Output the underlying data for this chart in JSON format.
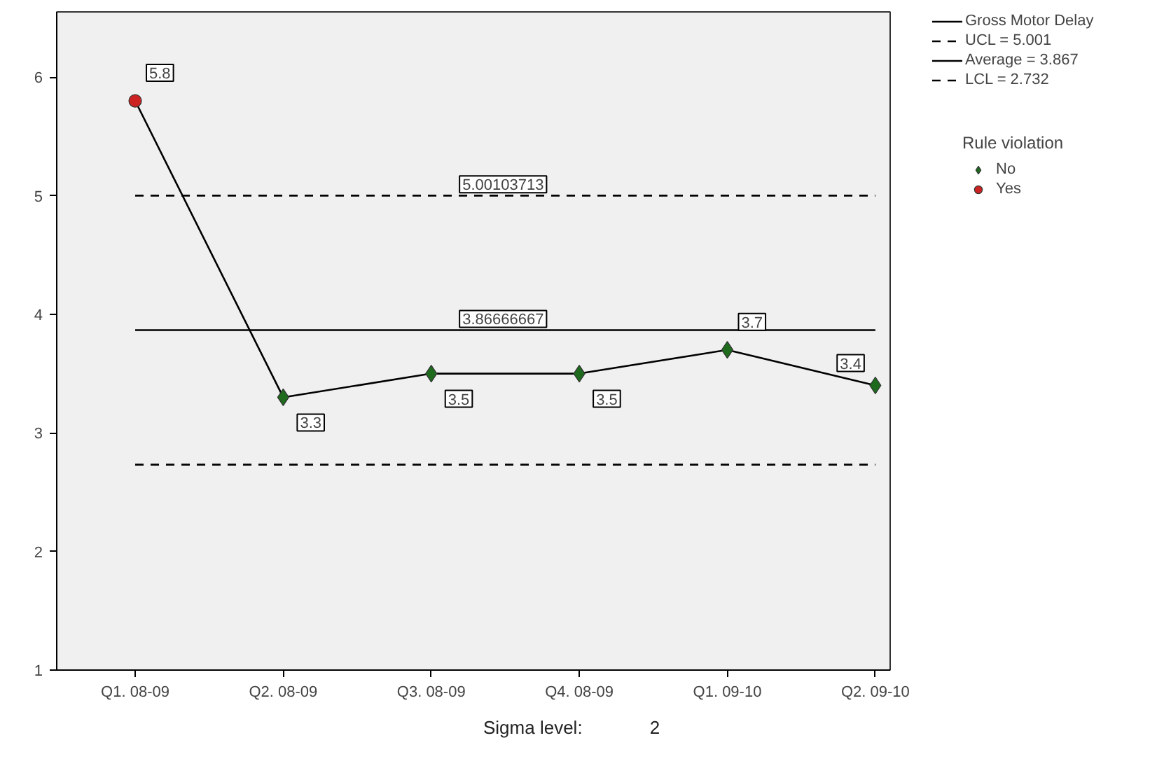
{
  "chart_data": {
    "type": "line",
    "categories": [
      "Q1. 08-09",
      "Q2. 08-09",
      "Q3. 08-09",
      "Q4. 08-09",
      "Q1. 09-10",
      "Q2. 09-10"
    ],
    "series": [
      {
        "name": "Gross Motor Delay",
        "color": "#000000",
        "values": [
          5.8,
          3.3,
          3.5,
          3.5,
          3.7,
          3.4
        ],
        "value_labels": [
          "5.8",
          "3.3",
          "3.5",
          "3.5",
          "3.7",
          "3.4"
        ],
        "marker": "none",
        "line_style": "solid"
      },
      {
        "name": "UCL = 5.001",
        "color": "#000000",
        "values": [
          5.00103713,
          5.00103713,
          5.00103713,
          5.00103713,
          5.00103713,
          5.00103713
        ],
        "marker": "none",
        "line_style": "dashed"
      },
      {
        "name": "Average = 3.867",
        "color": "#000000",
        "values": [
          3.86666667,
          3.86666667,
          3.86666667,
          3.86666667,
          3.86666667,
          3.86666667
        ],
        "marker": "none",
        "line_style": "solid"
      },
      {
        "name": "LCL = 2.732",
        "color": "#000000",
        "values": [
          2.732,
          2.732,
          2.732,
          2.732,
          2.732,
          2.732
        ],
        "marker": "none",
        "line_style": "dashed"
      },
      {
        "name": "No",
        "type": "scatter",
        "color": "#1e6b1e",
        "marker": "diamond",
        "values": [
          null,
          3.3,
          3.5,
          3.5,
          3.7,
          3.4
        ]
      },
      {
        "name": "Yes",
        "type": "scatter",
        "color": "#cc2222",
        "marker": "circle",
        "values": [
          5.8,
          null,
          null,
          null,
          null,
          null
        ]
      }
    ],
    "legend_title": "Rule violation",
    "legend": "right",
    "annotations": [
      {
        "text": "5.00103713",
        "y": 5.00103713
      },
      {
        "text": "3.86666667",
        "y": 3.86666667
      },
      "Sigma level:",
      "2"
    ],
    "ylim": [
      1,
      6.55
    ],
    "yticks": [
      1,
      2,
      3,
      4,
      5,
      6
    ],
    "grid": false
  }
}
